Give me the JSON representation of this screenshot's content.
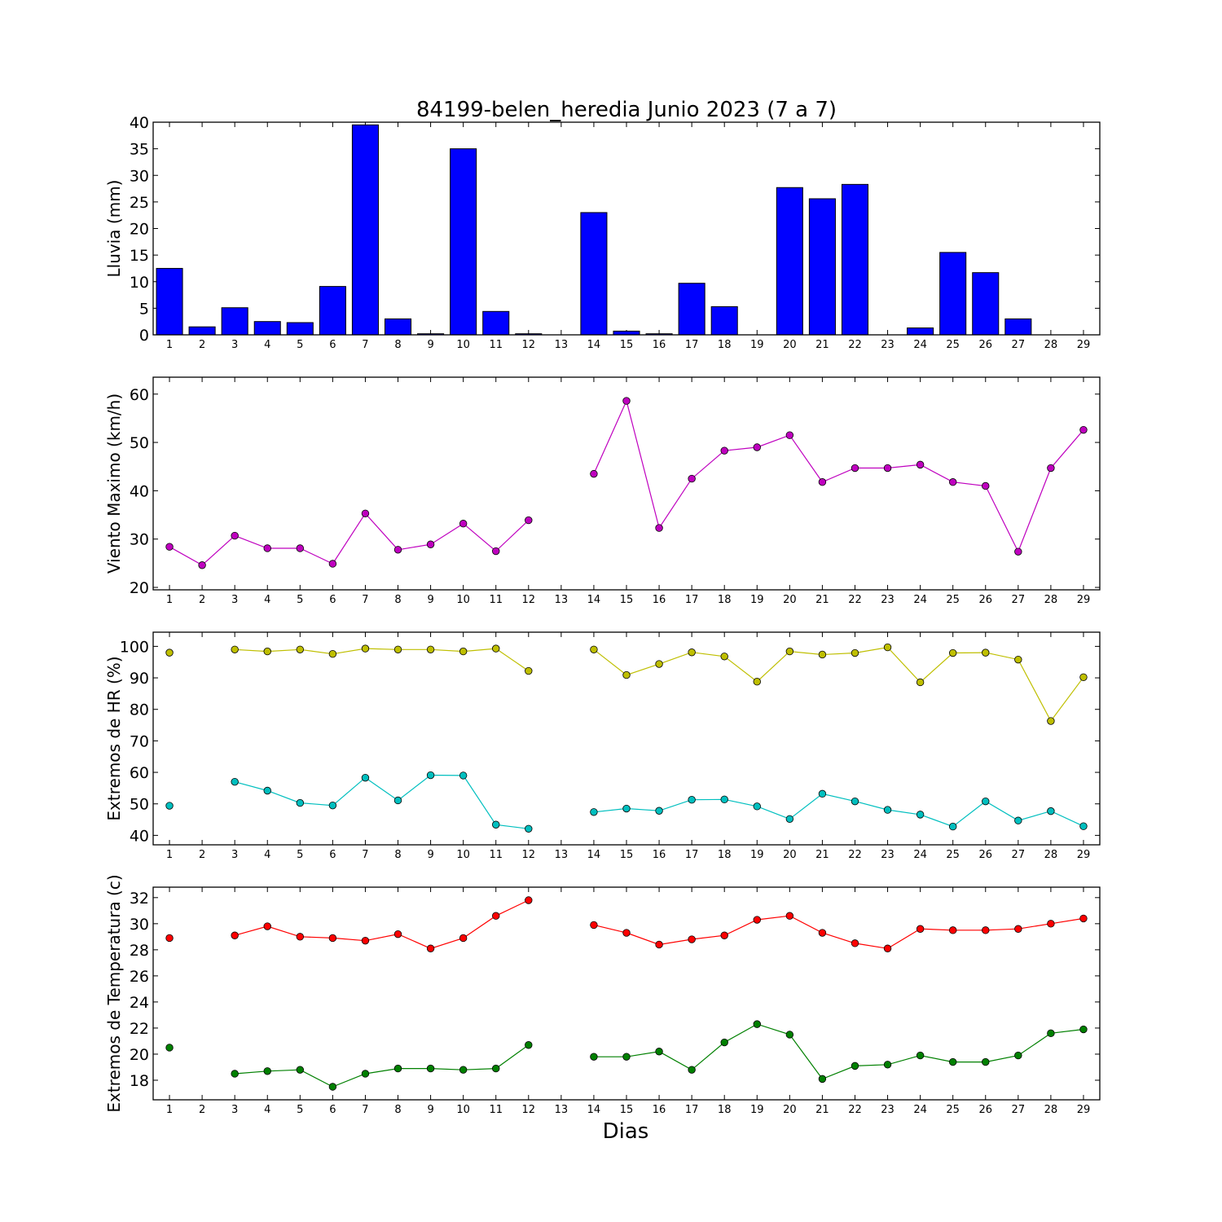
{
  "title": "84199-belen_heredia Junio 2023  (7 a 7)",
  "xlabel": "Dias",
  "colors": {
    "rain": "#0000ff",
    "wind": "#bf00bf",
    "hr_max": "#bfbf00",
    "hr_min": "#00bfbf",
    "t_max": "#ff0000",
    "t_min": "#008000"
  },
  "chart_data": [
    {
      "type": "bar",
      "ylabel": "Lluvia (mm)",
      "categories": [
        1,
        2,
        3,
        4,
        5,
        6,
        7,
        8,
        9,
        10,
        11,
        12,
        13,
        14,
        15,
        16,
        17,
        18,
        19,
        20,
        21,
        22,
        23,
        24,
        25,
        26,
        27,
        28,
        29
      ],
      "values": [
        12.5,
        1.5,
        5.1,
        2.5,
        2.3,
        9.1,
        39.5,
        3.0,
        0.2,
        35.0,
        4.4,
        0.2,
        0,
        23.0,
        0.7,
        0.2,
        9.7,
        5.3,
        0,
        27.7,
        25.6,
        28.3,
        0,
        1.3,
        15.5,
        11.7,
        3.0,
        0,
        0
      ],
      "ylim": [
        0,
        40
      ],
      "yticks": [
        0,
        5,
        10,
        15,
        20,
        25,
        30,
        35,
        40
      ]
    },
    {
      "type": "line",
      "ylabel": "Viento Maximo (km/h)",
      "x": [
        1,
        2,
        3,
        4,
        5,
        6,
        7,
        8,
        9,
        10,
        11,
        12,
        13,
        14,
        15,
        16,
        17,
        18,
        19,
        20,
        21,
        22,
        23,
        24,
        25,
        26,
        27,
        28,
        29
      ],
      "series": [
        {
          "values": [
            28.4,
            24.6,
            30.7,
            28.1,
            28.1,
            24.9,
            35.3,
            27.8,
            28.9,
            33.2,
            27.5,
            33.9,
            null,
            43.5,
            58.6,
            32.3,
            42.5,
            48.3,
            49.0,
            51.5,
            41.8,
            44.7,
            44.7,
            45.4,
            41.8,
            41.0,
            27.4,
            44.7,
            52.6
          ]
        }
      ],
      "ylim": [
        19.5,
        63.5
      ],
      "yticks": [
        20,
        30,
        40,
        50,
        60
      ]
    },
    {
      "type": "line",
      "ylabel": "Extremos de HR (%)",
      "x": [
        1,
        2,
        3,
        4,
        5,
        6,
        7,
        8,
        9,
        10,
        11,
        12,
        13,
        14,
        15,
        16,
        17,
        18,
        19,
        20,
        21,
        22,
        23,
        24,
        25,
        26,
        27,
        28,
        29
      ],
      "series": [
        {
          "values": [
            98,
            null,
            99,
            98.4,
            99,
            97.6,
            99.3,
            99,
            99,
            98.4,
            99.3,
            92.2,
            null,
            99,
            90.9,
            94.4,
            98.1,
            96.8,
            88.8,
            98.4,
            97.4,
            97.9,
            99.7,
            88.6,
            97.9,
            98.0,
            95.8,
            76.3,
            90.2
          ]
        },
        {
          "values": [
            49.4,
            null,
            57.0,
            54.2,
            50.3,
            49.5,
            58.3,
            51.1,
            59.1,
            59.0,
            43.4,
            42.1,
            null,
            47.4,
            48.5,
            47.8,
            51.3,
            51.4,
            49.2,
            45.2,
            53.2,
            50.8,
            48.1,
            46.6,
            42.8,
            50.8,
            44.7,
            47.7,
            42.9
          ]
        }
      ],
      "ylim": [
        37,
        104.5
      ],
      "yticks": [
        40,
        50,
        60,
        70,
        80,
        90,
        100
      ]
    },
    {
      "type": "line",
      "ylabel": "Extremos de Temperatura (c)",
      "x": [
        1,
        2,
        3,
        4,
        5,
        6,
        7,
        8,
        9,
        10,
        11,
        12,
        13,
        14,
        15,
        16,
        17,
        18,
        19,
        20,
        21,
        22,
        23,
        24,
        25,
        26,
        27,
        28,
        29
      ],
      "series": [
        {
          "values": [
            28.9,
            null,
            29.1,
            29.8,
            29.0,
            28.9,
            28.7,
            29.2,
            28.1,
            28.9,
            30.6,
            31.8,
            null,
            29.9,
            29.3,
            28.4,
            28.8,
            29.1,
            30.3,
            30.6,
            29.3,
            28.5,
            28.1,
            29.6,
            29.5,
            29.5,
            29.6,
            30.0,
            30.4
          ]
        },
        {
          "values": [
            20.5,
            null,
            18.5,
            18.7,
            18.8,
            17.5,
            18.5,
            18.9,
            18.9,
            18.8,
            18.9,
            20.7,
            null,
            19.8,
            19.8,
            20.2,
            18.8,
            20.9,
            22.3,
            21.5,
            18.1,
            19.1,
            19.2,
            19.9,
            19.4,
            19.4,
            19.9,
            21.6,
            21.9
          ]
        }
      ],
      "ylim": [
        16.5,
        32.8
      ],
      "yticks": [
        18,
        20,
        22,
        24,
        26,
        28,
        30,
        32
      ]
    }
  ]
}
